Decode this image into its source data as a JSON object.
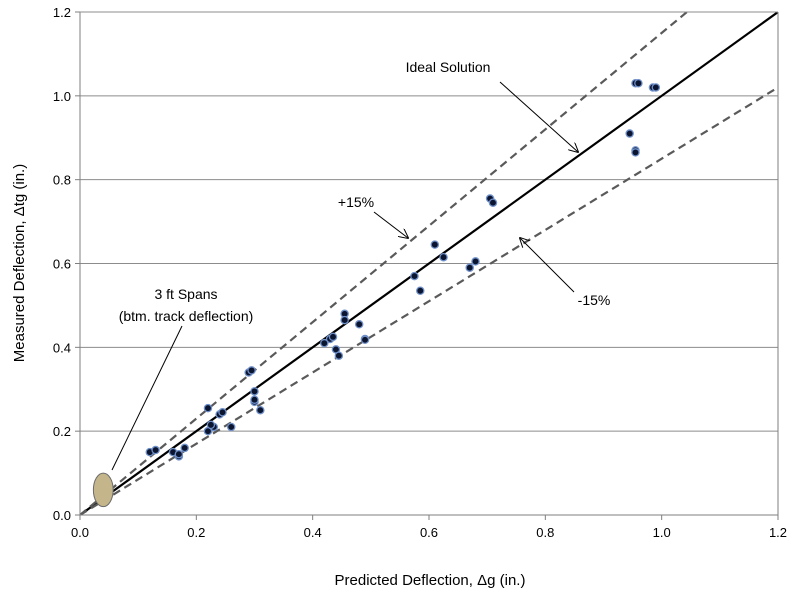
{
  "chart_data": {
    "type": "scatter",
    "title": "",
    "xlabel": "Predicted Deflection, Δg (in.)",
    "ylabel": "Measured Deflection, Δtg (in.)",
    "xlim": [
      0.0,
      1.2
    ],
    "ylim": [
      0.0,
      1.2
    ],
    "x_ticks": [
      "0.0",
      "0.2",
      "0.4",
      "0.6",
      "0.8",
      "1.0",
      "1.2"
    ],
    "y_ticks": [
      "0.0",
      "0.2",
      "0.4",
      "0.6",
      "0.8",
      "1.0",
      "1.2"
    ],
    "grid": "horizontal",
    "legend": "none",
    "reference_lines": [
      {
        "label": "Ideal Solution",
        "slope": 1.0,
        "style": "solid"
      },
      {
        "label": "+15%",
        "slope": 1.15,
        "style": "dashed"
      },
      {
        "label": "-15%",
        "slope": 0.85,
        "style": "dashed"
      }
    ],
    "annotations": [
      {
        "text": "Ideal Solution"
      },
      {
        "text": "+15%"
      },
      {
        "text": "-15%"
      },
      {
        "text": "3 ft Spans"
      },
      {
        "text": "(btm. track deflection)"
      }
    ],
    "cluster_region": {
      "x": 0.04,
      "y": 0.06,
      "rx": 0.017,
      "ry": 0.04
    },
    "points": [
      [
        0.12,
        0.15
      ],
      [
        0.13,
        0.155
      ],
      [
        0.16,
        0.15
      ],
      [
        0.17,
        0.14
      ],
      [
        0.17,
        0.145
      ],
      [
        0.18,
        0.16
      ],
      [
        0.22,
        0.255
      ],
      [
        0.22,
        0.2
      ],
      [
        0.23,
        0.21
      ],
      [
        0.225,
        0.215
      ],
      [
        0.24,
        0.24
      ],
      [
        0.245,
        0.245
      ],
      [
        0.26,
        0.21
      ],
      [
        0.29,
        0.34
      ],
      [
        0.295,
        0.345
      ],
      [
        0.3,
        0.295
      ],
      [
        0.3,
        0.27
      ],
      [
        0.3,
        0.275
      ],
      [
        0.31,
        0.25
      ],
      [
        0.42,
        0.41
      ],
      [
        0.43,
        0.42
      ],
      [
        0.435,
        0.425
      ],
      [
        0.44,
        0.395
      ],
      [
        0.445,
        0.38
      ],
      [
        0.455,
        0.48
      ],
      [
        0.455,
        0.465
      ],
      [
        0.48,
        0.455
      ],
      [
        0.49,
        0.42
      ],
      [
        0.49,
        0.418
      ],
      [
        0.575,
        0.57
      ],
      [
        0.585,
        0.535
      ],
      [
        0.61,
        0.645
      ],
      [
        0.625,
        0.615
      ],
      [
        0.67,
        0.59
      ],
      [
        0.68,
        0.605
      ],
      [
        0.705,
        0.755
      ],
      [
        0.71,
        0.745
      ],
      [
        0.945,
        0.91
      ],
      [
        0.955,
        0.87
      ],
      [
        0.955,
        0.865
      ],
      [
        0.955,
        1.03
      ],
      [
        0.96,
        1.03
      ],
      [
        0.985,
        1.02
      ],
      [
        0.99,
        1.02
      ]
    ]
  }
}
